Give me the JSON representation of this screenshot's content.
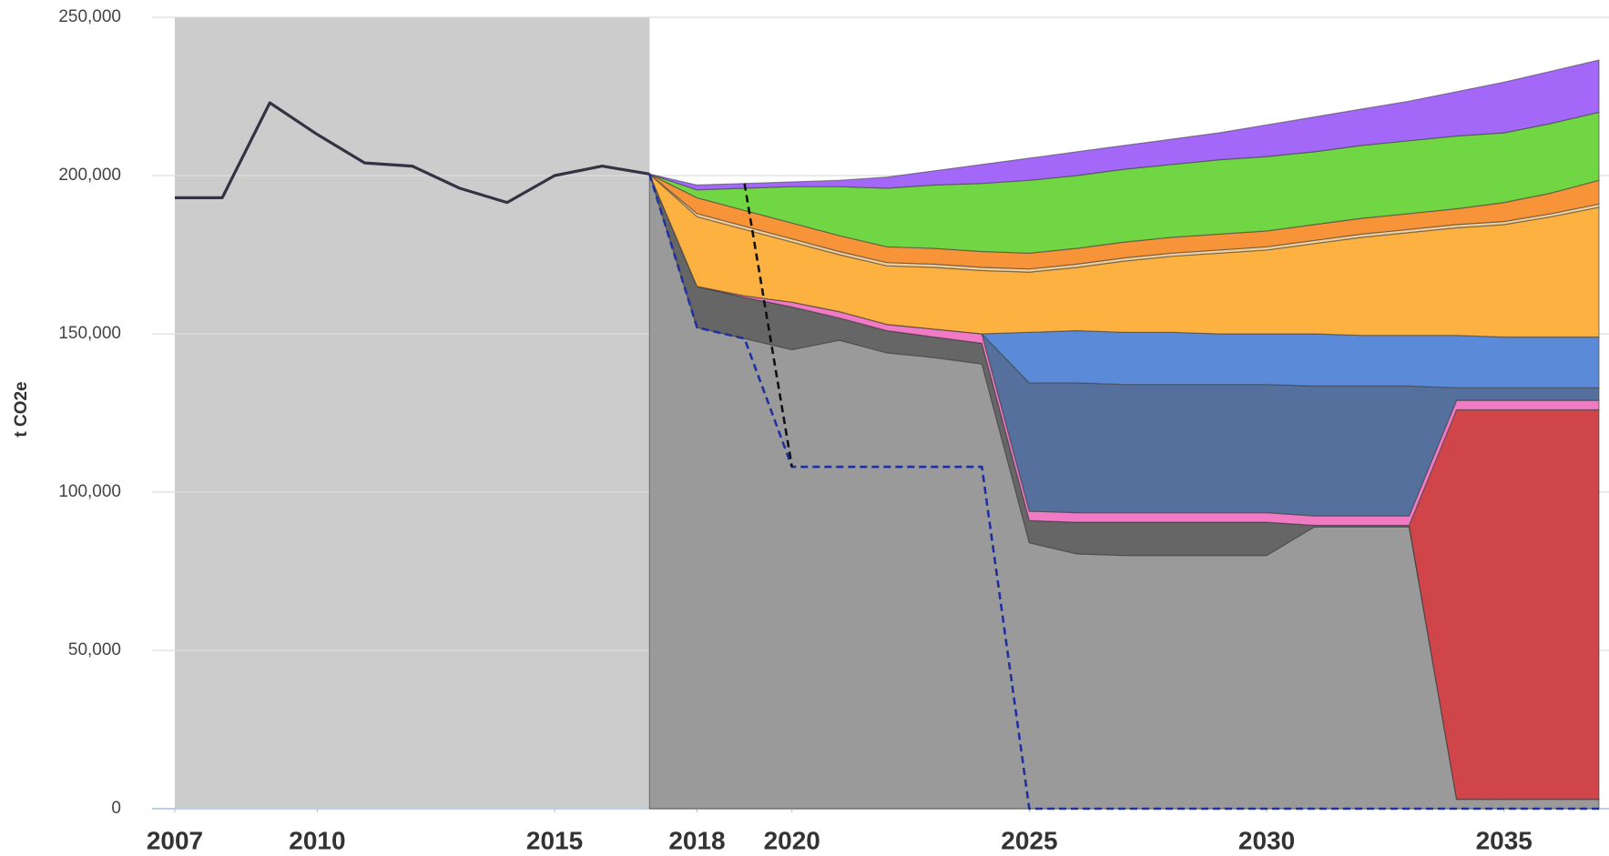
{
  "chart_data": {
    "type": "area",
    "y_label": "t CO2e",
    "x": [
      2007,
      2008,
      2009,
      2010,
      2011,
      2012,
      2013,
      2014,
      2015,
      2016,
      2017,
      2018,
      2019,
      2020,
      2021,
      2022,
      2023,
      2024,
      2025,
      2026,
      2027,
      2028,
      2029,
      2030,
      2031,
      2032,
      2033,
      2034,
      2035,
      2036,
      2037
    ],
    "xlim": [
      2007,
      2037
    ],
    "xticks": [
      2007,
      2010,
      2015,
      2018,
      2020,
      2025,
      2030,
      2035
    ],
    "ylim": [
      0,
      250000
    ],
    "yticks": [
      0,
      {
        "value": 50000,
        "label": "50,000"
      },
      {
        "value": 100000,
        "label": "100,000"
      },
      {
        "value": 150000,
        "label": "150,000"
      },
      {
        "value": 200000,
        "label": "200,000"
      },
      {
        "value": 250000,
        "label": "250,000"
      }
    ],
    "grid": true,
    "history_band": [
      2007,
      2017
    ],
    "series": [
      {
        "kind": "area",
        "color": "#9a9a9a",
        "values": [
          null,
          null,
          null,
          null,
          null,
          null,
          null,
          null,
          null,
          null,
          200500,
          152000,
          148500,
          145000,
          148000,
          144000,
          142500,
          140500,
          84000,
          80500,
          80000,
          80000,
          80000,
          80000,
          89000,
          89000,
          89000,
          3000,
          3000,
          3000,
          3000
        ]
      },
      {
        "kind": "area",
        "color": "#666666",
        "values": [
          null,
          null,
          null,
          null,
          null,
          null,
          null,
          null,
          null,
          null,
          0,
          13000,
          13000,
          13500,
          7000,
          7000,
          6500,
          6500,
          7000,
          10000,
          10500,
          10500,
          10500,
          10500,
          500,
          500,
          500,
          0,
          0,
          0,
          0
        ]
      },
      {
        "kind": "area",
        "color": "#d0454a",
        "values": [
          null,
          null,
          null,
          null,
          null,
          null,
          null,
          null,
          null,
          null,
          0,
          0,
          0,
          0,
          0,
          0,
          0,
          0,
          0,
          0,
          0,
          0,
          0,
          0,
          0,
          0,
          0,
          123000,
          123000,
          123000,
          123000
        ]
      },
      {
        "kind": "area",
        "color": "#f07ac4",
        "values": [
          null,
          null,
          null,
          null,
          null,
          null,
          null,
          null,
          null,
          null,
          0,
          0,
          500,
          1500,
          2000,
          2000,
          2500,
          3000,
          3000,
          3000,
          3000,
          3000,
          3000,
          3000,
          3000,
          3000,
          3000,
          3000,
          3000,
          3000,
          3000
        ]
      },
      {
        "kind": "area",
        "color": "#56709e",
        "values": [
          null,
          null,
          null,
          null,
          null,
          null,
          null,
          null,
          null,
          null,
          0,
          0,
          0,
          0,
          0,
          0,
          0,
          0,
          40500,
          41000,
          40500,
          40500,
          40500,
          40500,
          41000,
          41000,
          41000,
          4000,
          4000,
          4000,
          4000
        ]
      },
      {
        "kind": "area",
        "color": "#5b8ad8",
        "values": [
          null,
          null,
          null,
          null,
          null,
          null,
          null,
          null,
          null,
          null,
          0,
          0,
          0,
          0,
          0,
          0,
          0,
          0,
          16000,
          16500,
          16500,
          16500,
          16000,
          16000,
          16500,
          16000,
          16000,
          16500,
          16000,
          16000,
          16000
        ]
      },
      {
        "kind": "area",
        "color": "#fcb140",
        "values": [
          null,
          null,
          null,
          null,
          null,
          null,
          null,
          null,
          null,
          null,
          0,
          22000,
          21000,
          19000,
          18000,
          18500,
          19500,
          20000,
          19000,
          20000,
          22500,
          24000,
          25500,
          26500,
          28500,
          31000,
          32500,
          34000,
          35500,
          38000,
          41000
        ]
      },
      {
        "kind": "area",
        "color": "#f3cf95",
        "values": [
          null,
          null,
          null,
          null,
          null,
          null,
          null,
          null,
          null,
          null,
          0,
          1000,
          1000,
          1000,
          1000,
          1000,
          1000,
          1000,
          1000,
          1000,
          1000,
          1000,
          1000,
          1000,
          1000,
          1000,
          1000,
          1000,
          1000,
          1000,
          1000
        ]
      },
      {
        "kind": "area",
        "color": "#f7943a",
        "values": [
          null,
          null,
          null,
          null,
          null,
          null,
          null,
          null,
          null,
          null,
          0,
          5000,
          5000,
          5000,
          5000,
          5000,
          5000,
          5000,
          5000,
          5000,
          5000,
          5000,
          5000,
          5000,
          5000,
          5000,
          5000,
          5000,
          6000,
          6500,
          7500
        ]
      },
      {
        "kind": "area",
        "color": "#70d644",
        "values": [
          null,
          null,
          null,
          null,
          null,
          null,
          null,
          null,
          null,
          null,
          0,
          2500,
          7000,
          11500,
          15500,
          18500,
          20000,
          21500,
          23000,
          23000,
          23000,
          23000,
          23500,
          23500,
          23000,
          23000,
          23000,
          23000,
          22000,
          22000,
          21500
        ]
      },
      {
        "kind": "area",
        "color": "#a468f9",
        "values": [
          null,
          null,
          null,
          null,
          null,
          null,
          null,
          null,
          null,
          null,
          0,
          1500,
          1500,
          1500,
          2000,
          3500,
          4500,
          6000,
          7000,
          7500,
          7500,
          8000,
          8500,
          10000,
          11000,
          11500,
          12500,
          14000,
          16000,
          16500,
          16500
        ]
      },
      {
        "kind": "line",
        "style": "solid",
        "color": "#333344",
        "values": [
          193000,
          193000,
          223000,
          213000,
          204000,
          203000,
          196000,
          191500,
          200000,
          203000,
          200500,
          null,
          null,
          null,
          null,
          null,
          null,
          null,
          null,
          null,
          null,
          null,
          null,
          null,
          null,
          null,
          null,
          null,
          null,
          null,
          null
        ]
      },
      {
        "kind": "line",
        "style": "dashed",
        "color": "#2030a0",
        "values": [
          null,
          null,
          null,
          null,
          null,
          null,
          null,
          null,
          null,
          null,
          200500,
          152000,
          148500,
          108000,
          108000,
          108000,
          108000,
          108000,
          0,
          0,
          0,
          0,
          0,
          0,
          0,
          0,
          0,
          0,
          0,
          0,
          0
        ]
      },
      {
        "kind": "line",
        "style": "dashed",
        "color": "#111111",
        "values": [
          null,
          null,
          null,
          null,
          null,
          null,
          null,
          null,
          null,
          null,
          null,
          null,
          197500,
          108000,
          null,
          null,
          null,
          null,
          null,
          null,
          null,
          null,
          null,
          null,
          null,
          null,
          null,
          null,
          null,
          null,
          null
        ]
      }
    ]
  }
}
